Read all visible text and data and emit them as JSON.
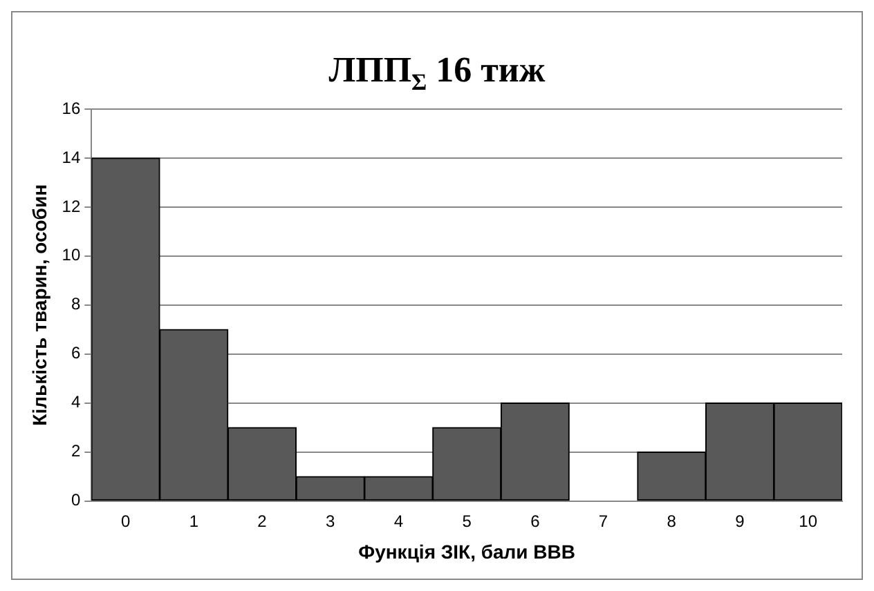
{
  "chart_data": {
    "type": "bar",
    "title": "ЛПП$_{Σ}$ 16 тиж",
    "xlabel": "Функція ЗІК, бали ВВВ",
    "ylabel": "Кількість тварин, особин",
    "categories": [
      "0",
      "1",
      "2",
      "3",
      "4",
      "5",
      "6",
      "7",
      "8",
      "9",
      "10"
    ],
    "values": [
      14,
      7,
      3,
      1,
      1,
      3,
      4,
      0,
      2,
      4,
      4
    ],
    "color": "#595959",
    "ylim": [
      0,
      16
    ],
    "yticks": [
      0,
      2,
      4,
      6,
      8,
      10,
      12,
      14,
      16
    ],
    "grid": "y"
  }
}
